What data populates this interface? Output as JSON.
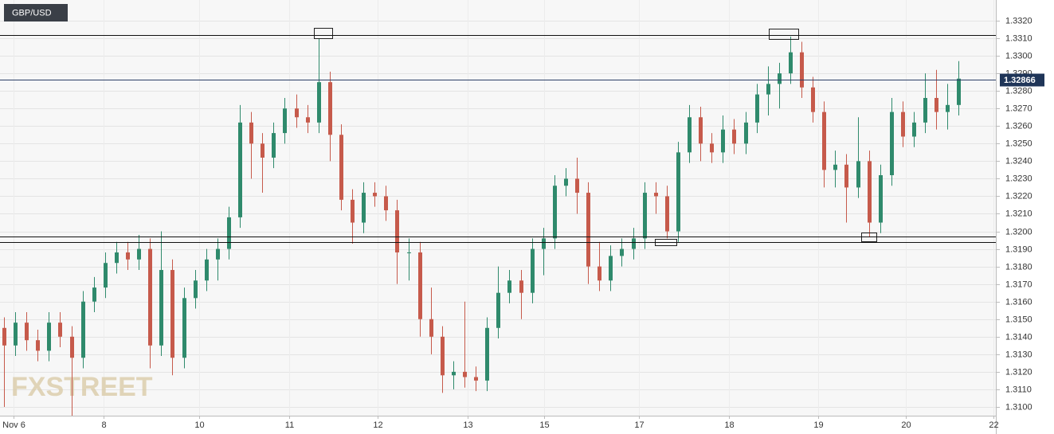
{
  "chart_data": {
    "type": "candlestick",
    "title": "GBP/USD",
    "watermark": "FXSTREET",
    "up_color": "#2f8a6c",
    "down_color": "#c65a4b",
    "open": [
      1.3145,
      1.3135,
      1.3148,
      1.3138,
      1.3132,
      1.3148,
      1.314,
      1.3128,
      1.316,
      1.3168,
      1.3182,
      1.3188,
      1.3184,
      1.319,
      1.3135,
      1.3178,
      1.3128,
      1.3162,
      1.3172,
      1.3184,
      1.319,
      1.3208,
      1.3262,
      1.325,
      1.3242,
      1.3256,
      1.327,
      1.3265,
      1.3262,
      1.3285,
      1.3255,
      1.3218,
      1.3205,
      1.3222,
      1.322,
      1.3212,
      1.3188,
      1.3188,
      1.315,
      1.314,
      1.3118,
      1.312,
      1.3117,
      1.3115,
      1.3145,
      1.3165,
      1.3172,
      1.3165,
      1.319,
      1.3196,
      1.3226,
      1.323,
      1.3222,
      1.318,
      1.3172,
      1.3186,
      1.319,
      1.3196,
      1.3222,
      1.322,
      1.32,
      1.3245,
      1.3265,
      1.325,
      1.3245,
      1.3258,
      1.325,
      1.3262,
      1.3278,
      1.3284,
      1.329,
      1.3302,
      1.3282,
      1.3268,
      1.3235,
      1.3238,
      1.3225,
      1.324,
      1.3205,
      1.3232,
      1.3268,
      1.3254,
      1.3262,
      1.3276,
      1.3268,
      1.3272
    ],
    "high": [
      1.3151,
      1.3154,
      1.3154,
      1.3144,
      1.3154,
      1.3154,
      1.3146,
      1.3166,
      1.3174,
      1.3188,
      1.3194,
      1.3194,
      1.3198,
      1.3196,
      1.32,
      1.3184,
      1.3168,
      1.3178,
      1.319,
      1.3196,
      1.3214,
      1.3272,
      1.3268,
      1.3256,
      1.3262,
      1.3276,
      1.3278,
      1.3272,
      1.331,
      1.3291,
      1.3261,
      1.3224,
      1.3228,
      1.3228,
      1.3226,
      1.3218,
      1.3196,
      1.3194,
      1.3168,
      1.3146,
      1.3126,
      1.316,
      1.3123,
      1.3151,
      1.318,
      1.3178,
      1.3178,
      1.3196,
      1.3202,
      1.3232,
      1.3236,
      1.3242,
      1.3228,
      1.3194,
      1.3192,
      1.3196,
      1.3202,
      1.3228,
      1.3228,
      1.3226,
      1.3251,
      1.3272,
      1.3271,
      1.3256,
      1.3266,
      1.3264,
      1.3268,
      1.3284,
      1.3294,
      1.3296,
      1.3311,
      1.3308,
      1.3288,
      1.3274,
      1.3246,
      1.3244,
      1.3265,
      1.3246,
      1.3238,
      1.3276,
      1.3274,
      1.3268,
      1.329,
      1.3292,
      1.3284,
      1.3297
    ],
    "low": [
      1.31,
      1.3129,
      1.3132,
      1.3126,
      1.3126,
      1.3134,
      1.3095,
      1.3122,
      1.3154,
      1.3162,
      1.3176,
      1.3178,
      1.3178,
      1.3122,
      1.3129,
      1.3118,
      1.3122,
      1.3156,
      1.3166,
      1.3172,
      1.3184,
      1.3202,
      1.323,
      1.3222,
      1.3236,
      1.325,
      1.3259,
      1.3256,
      1.3256,
      1.324,
      1.3212,
      1.3193,
      1.3199,
      1.3214,
      1.3206,
      1.317,
      1.3172,
      1.314,
      1.313,
      1.3108,
      1.311,
      1.3111,
      1.3109,
      1.3109,
      1.3139,
      1.3159,
      1.315,
      1.3159,
      1.3175,
      1.319,
      1.322,
      1.321,
      1.317,
      1.3166,
      1.3166,
      1.318,
      1.3184,
      1.319,
      1.321,
      1.3196,
      1.3194,
      1.3239,
      1.324,
      1.3239,
      1.3239,
      1.3244,
      1.3244,
      1.3256,
      1.3266,
      1.327,
      1.3284,
      1.3276,
      1.3262,
      1.3225,
      1.3225,
      1.3205,
      1.3219,
      1.3197,
      1.3199,
      1.3226,
      1.3248,
      1.3248,
      1.3256,
      1.3258,
      1.3258,
      1.3266
    ],
    "close": [
      1.3135,
      1.3148,
      1.3138,
      1.3132,
      1.3148,
      1.314,
      1.3128,
      1.316,
      1.3168,
      1.3182,
      1.3188,
      1.3184,
      1.319,
      1.3135,
      1.3178,
      1.3128,
      1.3162,
      1.3172,
      1.3184,
      1.319,
      1.3208,
      1.3262,
      1.325,
      1.3242,
      1.3256,
      1.327,
      1.3265,
      1.3262,
      1.3285,
      1.3255,
      1.3218,
      1.3205,
      1.3222,
      1.322,
      1.3212,
      1.3188,
      1.3188,
      1.315,
      1.314,
      1.3118,
      1.312,
      1.3117,
      1.3115,
      1.3145,
      1.3165,
      1.3172,
      1.3165,
      1.319,
      1.3196,
      1.3226,
      1.323,
      1.3222,
      1.318,
      1.3172,
      1.3186,
      1.319,
      1.3196,
      1.3222,
      1.322,
      1.32,
      1.3245,
      1.3265,
      1.325,
      1.3245,
      1.3258,
      1.325,
      1.3262,
      1.3278,
      1.3284,
      1.329,
      1.3302,
      1.3282,
      1.3268,
      1.3235,
      1.3238,
      1.3225,
      1.324,
      1.3205,
      1.3232,
      1.3268,
      1.3254,
      1.3262,
      1.3276,
      1.3268,
      1.3272,
      1.3287
    ],
    "xlim": [
      -0.35,
      88.3
    ],
    "xticks": [
      {
        "value": 0.85,
        "label": "Nov 6"
      },
      {
        "value": 8.87,
        "label": "8"
      },
      {
        "value": 17.38,
        "label": "10"
      },
      {
        "value": 25.39,
        "label": "11"
      },
      {
        "value": 33.26,
        "label": "12"
      },
      {
        "value": 41.28,
        "label": "13"
      },
      {
        "value": 48.09,
        "label": "15"
      },
      {
        "value": 56.52,
        "label": "17"
      },
      {
        "value": 64.54,
        "label": "18"
      },
      {
        "value": 72.48,
        "label": "19"
      },
      {
        "value": 80.28,
        "label": "20"
      },
      {
        "value": 88.09,
        "label": "22"
      }
    ],
    "ylim": [
      1.3095,
      1.33318
    ],
    "yticks": [
      {
        "value": 1.31,
        "label": "1.3100"
      },
      {
        "value": 1.311,
        "label": "1.3110"
      },
      {
        "value": 1.312,
        "label": "1.3120"
      },
      {
        "value": 1.313,
        "label": "1.3130"
      },
      {
        "value": 1.314,
        "label": "1.3140"
      },
      {
        "value": 1.315,
        "label": "1.3150"
      },
      {
        "value": 1.316,
        "label": "1.3160"
      },
      {
        "value": 1.317,
        "label": "1.3170"
      },
      {
        "value": 1.318,
        "label": "1.3180"
      },
      {
        "value": 1.319,
        "label": "1.3190"
      },
      {
        "value": 1.32,
        "label": "1.3200"
      },
      {
        "value": 1.321,
        "label": "1.3210"
      },
      {
        "value": 1.322,
        "label": "1.3220"
      },
      {
        "value": 1.323,
        "label": "1.3230"
      },
      {
        "value": 1.324,
        "label": "1.3240"
      },
      {
        "value": 1.325,
        "label": "1.3250"
      },
      {
        "value": 1.326,
        "label": "1.3260"
      },
      {
        "value": 1.327,
        "label": "1.3270"
      },
      {
        "value": 1.328,
        "label": "1.3280"
      },
      {
        "value": 1.329,
        "label": "1.3290"
      },
      {
        "value": 1.33,
        "label": "1.3300"
      },
      {
        "value": 1.331,
        "label": "1.3310"
      },
      {
        "value": 1.332,
        "label": "1.3320"
      }
    ],
    "grid": true,
    "levels": [
      1.3312,
      1.3197,
      1.3194
    ],
    "last_price": 1.32866
  }
}
